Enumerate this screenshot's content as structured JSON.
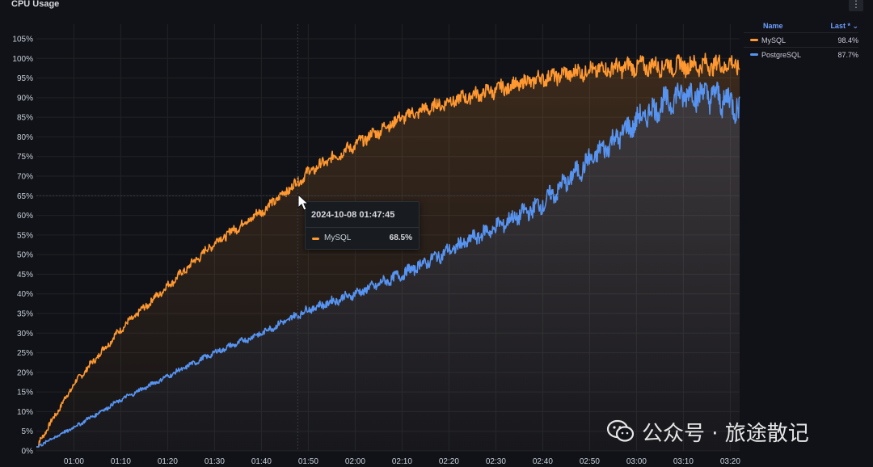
{
  "panel": {
    "title": "CPU Usage",
    "menu_glyph": "⋮"
  },
  "legend": {
    "name_header": "Name",
    "last_header": "Last * ⌄",
    "rows": [
      {
        "name": "MySQL",
        "last": "98.4%",
        "color": "#ff9830"
      },
      {
        "name": "PostgreSQL",
        "last": "87.7%",
        "color": "#5794f2"
      }
    ]
  },
  "tooltip": {
    "time": "2024-10-08 01:47:45",
    "series": "MySQL",
    "value": "68.5%",
    "color": "#ff9830"
  },
  "watermark": {
    "text": "公众号 · 旅途散记",
    "icon": "wechat-icon"
  },
  "chart_data": {
    "type": "line",
    "x_ticks": [
      "01:00",
      "01:10",
      "01:20",
      "01:30",
      "01:40",
      "01:50",
      "02:00",
      "02:10",
      "02:20",
      "02:30",
      "02:40",
      "02:50",
      "03:00",
      "03:10",
      "03:20"
    ],
    "y_ticks": [
      "0%",
      "5%",
      "10%",
      "15%",
      "20%",
      "25%",
      "30%",
      "35%",
      "40%",
      "45%",
      "50%",
      "55%",
      "60%",
      "65%",
      "70%",
      "75%",
      "80%",
      "85%",
      "90%",
      "95%",
      "100%",
      "105%"
    ],
    "ylim": [
      0,
      105
    ],
    "hover_value": 65,
    "series": [
      {
        "name": "MySQL",
        "color": "#ff9830",
        "x": [
          "00:52",
          "01:00",
          "01:10",
          "01:20",
          "01:30",
          "01:40",
          "01:47:45",
          "01:50",
          "02:00",
          "02:10",
          "02:20",
          "02:30",
          "02:40",
          "02:50",
          "03:00",
          "03:10",
          "03:20",
          "03:22"
        ],
        "values": [
          1,
          17,
          31,
          42,
          53,
          61,
          68.5,
          71,
          78,
          85,
          89,
          92,
          95,
          97,
          98,
          98.2,
          98.4,
          98.4
        ]
      },
      {
        "name": "PostgreSQL",
        "color": "#5794f2",
        "x": [
          "00:52",
          "01:00",
          "01:10",
          "01:20",
          "01:30",
          "01:40",
          "01:50",
          "02:00",
          "02:10",
          "02:20",
          "02:30",
          "02:40",
          "02:50",
          "03:00",
          "03:05",
          "03:10",
          "03:15",
          "03:20",
          "03:22"
        ],
        "values": [
          1,
          6,
          13,
          19,
          25,
          30,
          36,
          40,
          45,
          51,
          57,
          63,
          74,
          84,
          88,
          91,
          91,
          89,
          87.7
        ]
      }
    ]
  }
}
